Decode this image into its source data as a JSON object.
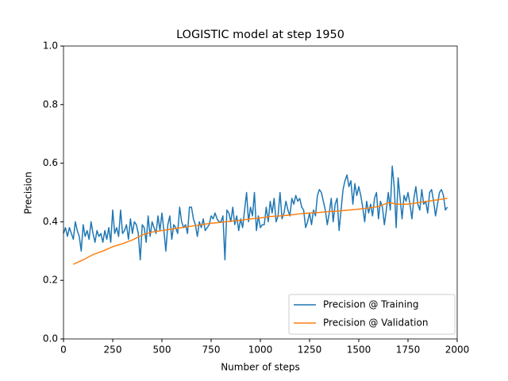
{
  "chart_data": {
    "type": "line",
    "title": "LOGISTIC model at step 1950",
    "xlabel": "Number of steps",
    "ylabel": "Precision",
    "xlim": [
      0,
      2000
    ],
    "xticks": [
      0,
      250,
      500,
      750,
      1000,
      1250,
      1500,
      1750,
      2000
    ],
    "ylim": [
      0,
      1
    ],
    "yticks": [
      {
        "value": 0,
        "label": "0.0"
      },
      0.2,
      0.4,
      0.6,
      0.8,
      {
        "value": 1,
        "label": "1.0"
      }
    ],
    "legend": "lower right",
    "series": [
      {
        "name": "Precision @ Training",
        "color": "#1f77b4",
        "x": [
          0,
          10,
          20,
          30,
          40,
          50,
          60,
          70,
          80,
          90,
          100,
          110,
          120,
          130,
          140,
          150,
          160,
          170,
          180,
          190,
          200,
          210,
          220,
          230,
          240,
          250,
          260,
          270,
          280,
          290,
          300,
          310,
          320,
          330,
          340,
          350,
          360,
          370,
          380,
          390,
          400,
          410,
          420,
          430,
          440,
          450,
          460,
          470,
          480,
          490,
          500,
          510,
          520,
          530,
          540,
          550,
          560,
          570,
          580,
          590,
          600,
          610,
          620,
          630,
          640,
          650,
          660,
          670,
          680,
          690,
          700,
          710,
          720,
          730,
          740,
          750,
          760,
          770,
          780,
          790,
          800,
          810,
          820,
          830,
          840,
          850,
          860,
          870,
          880,
          890,
          900,
          910,
          920,
          930,
          940,
          950,
          960,
          970,
          980,
          990,
          1000,
          1010,
          1020,
          1030,
          1040,
          1050,
          1060,
          1070,
          1080,
          1090,
          1100,
          1110,
          1120,
          1130,
          1140,
          1150,
          1160,
          1170,
          1180,
          1190,
          1200,
          1210,
          1220,
          1230,
          1240,
          1250,
          1260,
          1270,
          1280,
          1290,
          1300,
          1310,
          1320,
          1330,
          1340,
          1350,
          1360,
          1370,
          1380,
          1390,
          1400,
          1410,
          1420,
          1430,
          1440,
          1450,
          1460,
          1470,
          1480,
          1490,
          1500,
          1510,
          1520,
          1530,
          1540,
          1550,
          1560,
          1570,
          1580,
          1590,
          1600,
          1610,
          1620,
          1630,
          1640,
          1650,
          1660,
          1670,
          1680,
          1690,
          1700,
          1710,
          1720,
          1730,
          1740,
          1750,
          1760,
          1770,
          1780,
          1790,
          1800,
          1810,
          1820,
          1830,
          1840,
          1850,
          1860,
          1870,
          1880,
          1890,
          1900,
          1910,
          1920,
          1930,
          1940,
          1950
        ],
        "values": [
          0.36,
          0.38,
          0.35,
          0.38,
          0.36,
          0.34,
          0.4,
          0.37,
          0.35,
          0.3,
          0.39,
          0.35,
          0.37,
          0.34,
          0.4,
          0.36,
          0.33,
          0.37,
          0.35,
          0.36,
          0.33,
          0.37,
          0.34,
          0.38,
          0.33,
          0.44,
          0.36,
          0.38,
          0.35,
          0.44,
          0.36,
          0.37,
          0.39,
          0.34,
          0.41,
          0.36,
          0.4,
          0.39,
          0.36,
          0.27,
          0.39,
          0.38,
          0.33,
          0.42,
          0.35,
          0.4,
          0.38,
          0.36,
          0.42,
          0.37,
          0.43,
          0.37,
          0.3,
          0.39,
          0.42,
          0.34,
          0.39,
          0.38,
          0.36,
          0.45,
          0.4,
          0.38,
          0.39,
          0.36,
          0.45,
          0.45,
          0.41,
          0.39,
          0.35,
          0.4,
          0.38,
          0.41,
          0.37,
          0.38,
          0.39,
          0.42,
          0.41,
          0.43,
          0.41,
          0.4,
          0.4,
          0.42,
          0.27,
          0.44,
          0.43,
          0.4,
          0.45,
          0.39,
          0.42,
          0.37,
          0.41,
          0.38,
          0.44,
          0.5,
          0.4,
          0.45,
          0.42,
          0.5,
          0.37,
          0.42,
          0.38,
          0.39,
          0.39,
          0.45,
          0.4,
          0.47,
          0.43,
          0.48,
          0.4,
          0.42,
          0.5,
          0.41,
          0.43,
          0.47,
          0.44,
          0.42,
          0.48,
          0.46,
          0.49,
          0.47,
          0.48,
          0.45,
          0.44,
          0.38,
          0.4,
          0.43,
          0.39,
          0.44,
          0.42,
          0.49,
          0.51,
          0.5,
          0.47,
          0.44,
          0.39,
          0.43,
          0.48,
          0.4,
          0.46,
          0.48,
          0.37,
          0.44,
          0.51,
          0.54,
          0.56,
          0.52,
          0.54,
          0.46,
          0.53,
          0.49,
          0.52,
          0.49,
          0.45,
          0.4,
          0.47,
          0.43,
          0.46,
          0.42,
          0.48,
          0.5,
          0.41,
          0.47,
          0.45,
          0.39,
          0.44,
          0.5,
          0.44,
          0.59,
          0.52,
          0.38,
          0.55,
          0.48,
          0.41,
          0.49,
          0.47,
          0.5,
          0.46,
          0.41,
          0.48,
          0.52,
          0.46,
          0.44,
          0.51,
          0.46,
          0.47,
          0.43,
          0.5,
          0.51,
          0.47,
          0.42,
          0.46,
          0.5,
          0.51,
          0.49,
          0.44,
          0.45
        ]
      },
      {
        "name": "Precision @ Validation",
        "color": "#ff7f0e",
        "x": [
          50,
          100,
          150,
          200,
          250,
          300,
          350,
          400,
          450,
          500,
          550,
          600,
          650,
          700,
          750,
          800,
          850,
          900,
          950,
          1000,
          1050,
          1100,
          1150,
          1200,
          1250,
          1300,
          1350,
          1400,
          1450,
          1500,
          1550,
          1600,
          1650,
          1700,
          1750,
          1800,
          1850,
          1900,
          1950
        ],
        "values": [
          0.255,
          0.27,
          0.288,
          0.3,
          0.315,
          0.325,
          0.338,
          0.355,
          0.365,
          0.37,
          0.375,
          0.38,
          0.385,
          0.39,
          0.395,
          0.398,
          0.402,
          0.405,
          0.41,
          0.413,
          0.418,
          0.42,
          0.423,
          0.427,
          0.43,
          0.432,
          0.435,
          0.437,
          0.44,
          0.443,
          0.447,
          0.452,
          0.465,
          0.46,
          0.46,
          0.465,
          0.47,
          0.475,
          0.48
        ]
      }
    ]
  }
}
